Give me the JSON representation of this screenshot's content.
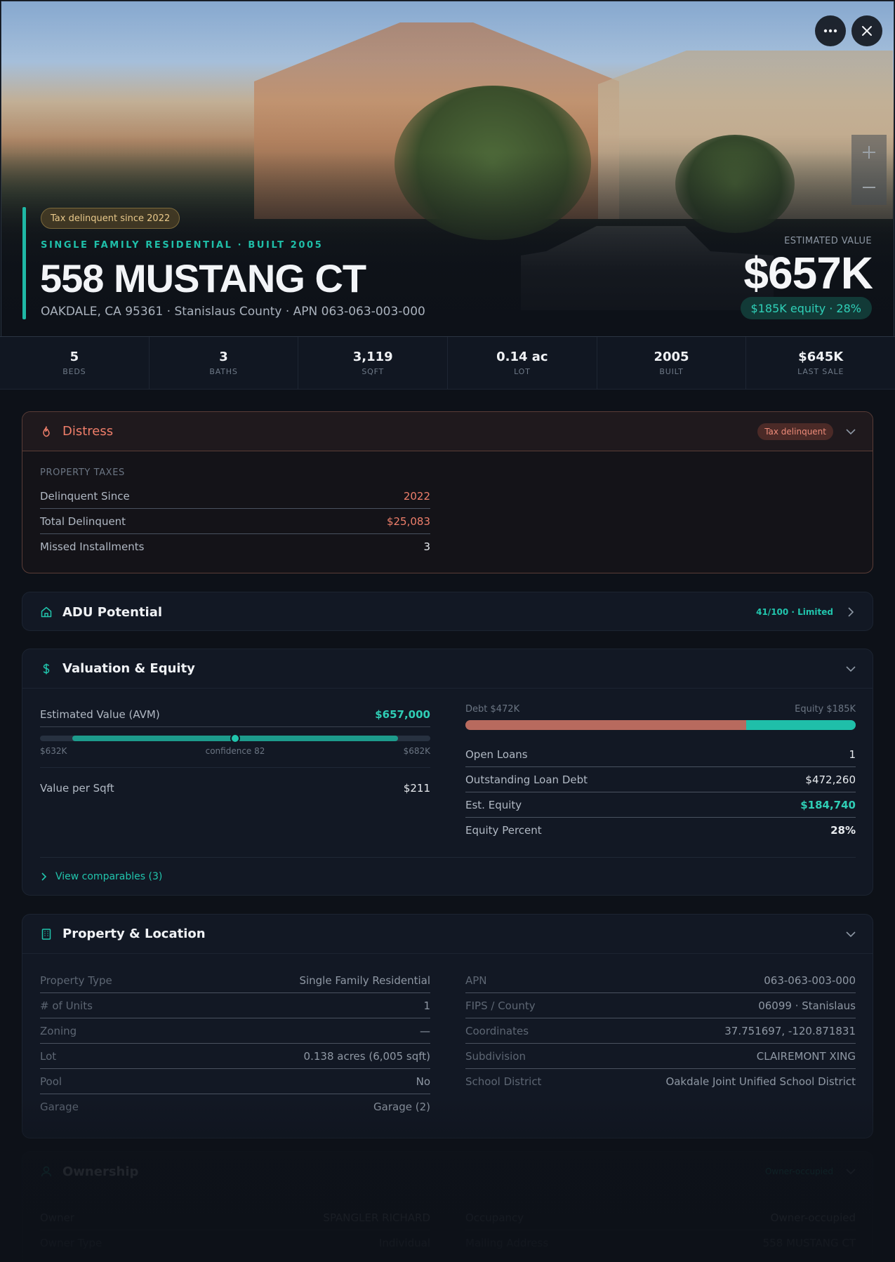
{
  "hero": {
    "tag": "Tax delinquent since 2022",
    "subtitle": "SINGLE FAMILY RESIDENTIAL · BUILT 2005",
    "title": "558 MUSTANG CT",
    "address": "OAKDALE, CA 95361 · Stanislaus County · APN 063-063-003-000",
    "estimated_label": "ESTIMATED VALUE",
    "estimated_value": "$657K",
    "equity_pill": "$185K equity · 28%",
    "zoom_in": "+",
    "zoom_out": "−"
  },
  "stats": [
    {
      "value": "5",
      "label": "BEDS"
    },
    {
      "value": "3",
      "label": "BATHS"
    },
    {
      "value": "3,119",
      "label": "SQFT"
    },
    {
      "value": "0.14 ac",
      "label": "LOT"
    },
    {
      "value": "2005",
      "label": "BUILT"
    },
    {
      "value": "$645K",
      "label": "LAST SALE"
    }
  ],
  "distress": {
    "title": "Distress",
    "badge": "Tax delinquent",
    "section": "PROPERTY TAXES",
    "rows": [
      {
        "k": "Delinquent Since",
        "v": "2022"
      },
      {
        "k": "Total Delinquent",
        "v": "$25,083"
      },
      {
        "k": "Missed Installments",
        "v": "3"
      }
    ]
  },
  "adu": {
    "title": "ADU Potential",
    "score": "41/100 · Limited"
  },
  "valuation": {
    "title": "Valuation & Equity",
    "avm_label": "Estimated Value (AVM)",
    "avm_value": "$657,000",
    "avm_low": "$632K",
    "avm_confidence": "confidence 82",
    "avm_high": "$682K",
    "avm_low_num": 632,
    "avm_high_num": 682,
    "avm_num": 657,
    "value_per_sqft_label": "Value per Sqft",
    "value_per_sqft": "$211",
    "debt_label": "Debt $472K",
    "equity_label": "Equity $185K",
    "equity_fraction": 0.28,
    "rows": [
      {
        "k": "Open Loans",
        "v": "1"
      },
      {
        "k": "Outstanding Loan Debt",
        "v": "$472,260"
      },
      {
        "k": "Est. Equity",
        "v": "$184,740"
      },
      {
        "k": "Equity Percent",
        "v": "28%"
      }
    ],
    "comparables": "View comparables (3)"
  },
  "property": {
    "title": "Property & Location",
    "left": [
      {
        "k": "Property Type",
        "v": "Single Family Residential"
      },
      {
        "k": "# of Units",
        "v": "1"
      },
      {
        "k": "Zoning",
        "v": "—"
      },
      {
        "k": "Lot",
        "v": "0.138 acres (6,005 sqft)"
      },
      {
        "k": "Pool",
        "v": "No"
      },
      {
        "k": "Garage",
        "v": "Garage (2)"
      }
    ],
    "right": [
      {
        "k": "APN",
        "v": "063-063-003-000"
      },
      {
        "k": "FIPS / County",
        "v": "06099 · Stanislaus"
      },
      {
        "k": "Coordinates",
        "v": "37.751697, -120.871831"
      },
      {
        "k": "Subdivision",
        "v": "CLAIREMONT XING"
      },
      {
        "k": "School District",
        "v": "Oakdale Joint Unified School District"
      }
    ]
  },
  "ownership": {
    "title": "Ownership",
    "badge": "Owner-occupied",
    "left": [
      {
        "k": "Owner",
        "v": "SPANGLER RICHARD"
      },
      {
        "k": "Owner Type",
        "v": "Individual"
      }
    ],
    "right": [
      {
        "k": "Occupancy",
        "v": "Owner-occupied"
      },
      {
        "k": "Mailing Address",
        "v": "558 MUSTANG CT"
      }
    ]
  },
  "colors": {
    "accent": "#1fbfa9",
    "danger": "#ee7f6b",
    "background": "#0d1118"
  }
}
